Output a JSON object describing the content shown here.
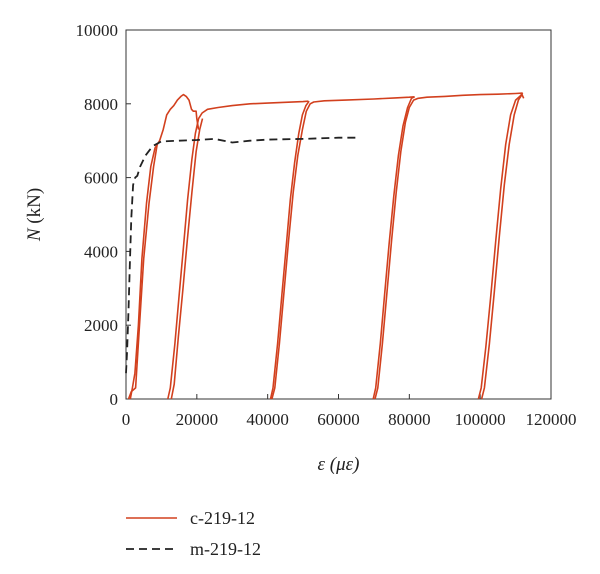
{
  "chart_data": {
    "type": "line",
    "xlabel_main": "ε",
    "xlabel_unit": "(με)",
    "ylabel_main": "N",
    "ylabel_unit": "(kN)",
    "xlim": [
      0,
      120000
    ],
    "ylim": [
      0,
      10000
    ],
    "xticks": [
      0,
      20000,
      40000,
      60000,
      80000,
      100000,
      120000
    ],
    "yticks": [
      0,
      2000,
      4000,
      6000,
      8000,
      10000
    ],
    "grid": false,
    "legend": "bottom-left",
    "series": [
      {
        "name": "c-219-12",
        "color": "#d2401e",
        "style": "solid",
        "segments": [
          [
            [
              1200,
              0
            ],
            [
              1800,
              300
            ],
            [
              2500,
              700
            ],
            [
              3500,
              2000
            ],
            [
              4500,
              3800
            ],
            [
              5800,
              5300
            ],
            [
              7000,
              6300
            ],
            [
              8200,
              6800
            ],
            [
              9500,
              7000
            ],
            [
              10500,
              7300
            ],
            [
              11500,
              7700
            ],
            [
              12500,
              7850
            ],
            [
              13500,
              7950
            ],
            [
              14500,
              8100
            ],
            [
              15500,
              8200
            ],
            [
              16200,
              8250
            ],
            [
              17000,
              8200
            ],
            [
              17800,
              8100
            ],
            [
              18500,
              7850
            ],
            [
              19000,
              7800
            ],
            [
              19800,
              7800
            ],
            [
              20000,
              7600
            ],
            [
              20500,
              7300
            ]
          ],
          [
            [
              700,
              0
            ],
            [
              1500,
              200
            ],
            [
              2700,
              300
            ],
            [
              3800,
              2000
            ],
            [
              5000,
              3800
            ],
            [
              6500,
              5300
            ],
            [
              7800,
              6300
            ],
            [
              8800,
              6900
            ]
          ],
          [
            [
              11800,
              0
            ],
            [
              12500,
              300
            ],
            [
              13800,
              1500
            ],
            [
              15000,
              2800
            ],
            [
              16200,
              4100
            ],
            [
              17400,
              5400
            ],
            [
              18600,
              6500
            ],
            [
              19600,
              7200
            ],
            [
              20500,
              7600
            ],
            [
              21500,
              7750
            ],
            [
              23000,
              7850
            ],
            [
              26000,
              7900
            ],
            [
              30000,
              7950
            ],
            [
              35000,
              8000
            ],
            [
              40000,
              8020
            ],
            [
              45000,
              8040
            ],
            [
              50000,
              8060
            ],
            [
              51500,
              8070
            ]
          ],
          [
            [
              12800,
              0
            ],
            [
              13600,
              400
            ],
            [
              14800,
              1700
            ],
            [
              16100,
              3000
            ],
            [
              17300,
              4300
            ],
            [
              18600,
              5600
            ],
            [
              19800,
              6700
            ],
            [
              20800,
              7300
            ],
            [
              21600,
              7600
            ]
          ],
          [
            [
              40800,
              0
            ],
            [
              41500,
              300
            ],
            [
              42800,
              1500
            ],
            [
              44000,
              2800
            ],
            [
              45200,
              4100
            ],
            [
              46400,
              5400
            ],
            [
              47600,
              6400
            ],
            [
              48800,
              7200
            ],
            [
              49800,
              7700
            ],
            [
              50800,
              7950
            ],
            [
              51700,
              8070
            ]
          ],
          [
            [
              41200,
              0
            ],
            [
              42000,
              300
            ],
            [
              43300,
              1500
            ],
            [
              44600,
              2900
            ],
            [
              45900,
              4300
            ],
            [
              47200,
              5600
            ],
            [
              48500,
              6600
            ],
            [
              49800,
              7300
            ],
            [
              50900,
              7800
            ],
            [
              52000,
              8000
            ],
            [
              53000,
              8050
            ],
            [
              56000,
              8080
            ],
            [
              62000,
              8100
            ],
            [
              70000,
              8130
            ],
            [
              76000,
              8160
            ],
            [
              80000,
              8180
            ],
            [
              81500,
              8190
            ]
          ],
          [
            [
              69800,
              0
            ],
            [
              70500,
              300
            ],
            [
              71800,
              1500
            ],
            [
              73000,
              2800
            ],
            [
              74300,
              4200
            ],
            [
              75600,
              5500
            ],
            [
              76900,
              6600
            ],
            [
              78200,
              7400
            ],
            [
              79500,
              7900
            ],
            [
              80600,
              8150
            ],
            [
              81500,
              8190
            ]
          ],
          [
            [
              70300,
              0
            ],
            [
              71100,
              300
            ],
            [
              72400,
              1500
            ],
            [
              73700,
              2900
            ],
            [
              75000,
              4300
            ],
            [
              76300,
              5600
            ],
            [
              77600,
              6700
            ],
            [
              78900,
              7500
            ],
            [
              80000,
              7900
            ],
            [
              81200,
              8100
            ],
            [
              82500,
              8150
            ],
            [
              85000,
              8180
            ],
            [
              90000,
              8200
            ],
            [
              95000,
              8230
            ],
            [
              100000,
              8250
            ],
            [
              105000,
              8260
            ],
            [
              110000,
              8280
            ],
            [
              112000,
              8290
            ]
          ],
          [
            [
              99500,
              0
            ],
            [
              100300,
              300
            ],
            [
              101600,
              1400
            ],
            [
              103000,
              2800
            ],
            [
              104400,
              4300
            ],
            [
              105800,
              5700
            ],
            [
              107200,
              6900
            ],
            [
              108600,
              7700
            ],
            [
              110000,
              8100
            ],
            [
              111200,
              8200
            ],
            [
              112000,
              8290
            ]
          ],
          [
            [
              100400,
              0
            ],
            [
              101200,
              300
            ],
            [
              102600,
              1500
            ],
            [
              104000,
              2900
            ],
            [
              105400,
              4400
            ],
            [
              106800,
              5800
            ],
            [
              108200,
              6900
            ],
            [
              109600,
              7700
            ],
            [
              110800,
              8100
            ],
            [
              111800,
              8250
            ],
            [
              112300,
              8150
            ]
          ]
        ]
      },
      {
        "name": "m-219-12",
        "color": "#222222",
        "style": "dashed",
        "segments": [
          [
            [
              0,
              700
            ],
            [
              300,
              1300
            ],
            [
              700,
              2400
            ],
            [
              1100,
              3700
            ],
            [
              1500,
              4900
            ],
            [
              2000,
              5800
            ],
            [
              2600,
              6000
            ],
            [
              3200,
              6050
            ],
            [
              4000,
              6300
            ],
            [
              5500,
              6600
            ],
            [
              7500,
              6850
            ],
            [
              10000,
              6980
            ],
            [
              15000,
              7000
            ],
            [
              20000,
              7020
            ],
            [
              25000,
              7050
            ],
            [
              30000,
              6950
            ],
            [
              35000,
              7000
            ],
            [
              40000,
              7030
            ],
            [
              50000,
              7050
            ],
            [
              60000,
              7080
            ],
            [
              65000,
              7080
            ]
          ]
        ]
      }
    ]
  }
}
